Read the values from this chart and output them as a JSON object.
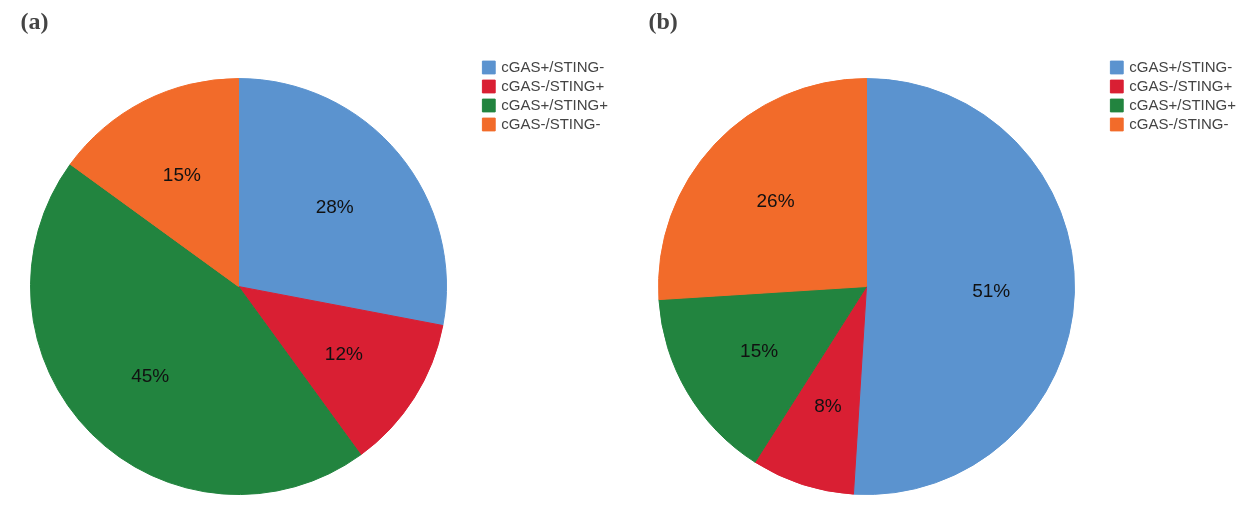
{
  "chart_data": [
    {
      "type": "pie",
      "title": "(a)",
      "categories": [
        "cGAS+/STING-",
        "cGAS-/STING+",
        "cGAS+/STING+",
        "cGAS-/STING-"
      ],
      "values": [
        28,
        12,
        45,
        15
      ],
      "colors": [
        "#5b93cf",
        "#d91f33",
        "#22843f",
        "#f26b2a"
      ],
      "value_labels": [
        "28%",
        "12%",
        "45%",
        "15%"
      ],
      "legend": "top right"
    },
    {
      "type": "pie",
      "title": "(b)",
      "categories": [
        "cGAS+/STING-",
        "cGAS-/STING+",
        "cGAS+/STING+",
        "cGAS-/STING-"
      ],
      "values": [
        51,
        8,
        15,
        26
      ],
      "colors": [
        "#5b93cf",
        "#d91f33",
        "#22843f",
        "#f26b2a"
      ],
      "value_labels": [
        "51%",
        "8%",
        "15%",
        "26%"
      ],
      "legend": "top right"
    }
  ]
}
